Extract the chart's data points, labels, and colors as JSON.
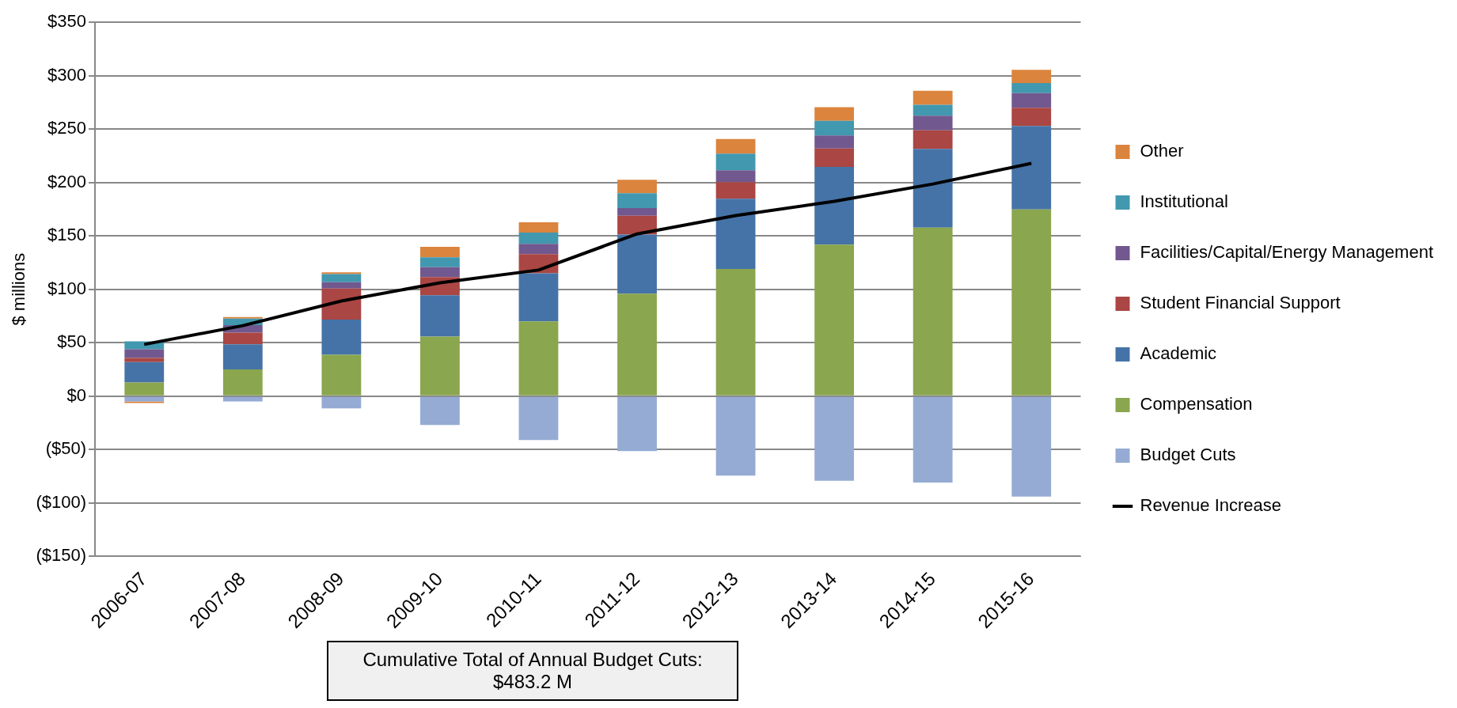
{
  "chart_data": {
    "type": "bar",
    "stacked": true,
    "ylabel": "$ millions",
    "categories": [
      "2006-07",
      "2007-08",
      "2008-09",
      "2009-10",
      "2010-11",
      "2011-12",
      "2012-13",
      "2013-14",
      "2014-15",
      "2015-16"
    ],
    "series": [
      {
        "name": "Budget Cuts",
        "color": "#95abd3",
        "values": [
          -5,
          -5,
          -11.4,
          -27,
          -41,
          -51.5,
          -74.4,
          -79.2,
          -80.9,
          -94.1
        ]
      },
      {
        "name": "Compensation",
        "color": "#8aa64e",
        "values": [
          12.8,
          25,
          38.7,
          55.7,
          69.9,
          95.8,
          119,
          141.8,
          157.7,
          174.7
        ]
      },
      {
        "name": "Academic",
        "color": "#4573a7",
        "values": [
          19,
          23.5,
          33,
          38.7,
          45,
          55.4,
          65.7,
          72.7,
          73.7,
          78.2
        ]
      },
      {
        "name": "Student Financial Support",
        "color": "#aa4643",
        "values": [
          4,
          11,
          29,
          17,
          18,
          17.6,
          15.6,
          17.3,
          17.3,
          16.9
        ]
      },
      {
        "name": "Facilities/Capital/Energy Management",
        "color": "#71588f",
        "values": [
          8,
          7,
          6,
          9.3,
          9.7,
          7.3,
          11,
          12.1,
          13.8,
          13.8
        ]
      },
      {
        "name": "Institutional",
        "color": "#4198af",
        "values": [
          7.5,
          6,
          7.5,
          9.3,
          10.4,
          13.8,
          15.6,
          13.8,
          10.1,
          9.4
        ]
      },
      {
        "name": "Other",
        "color": "#db843d",
        "values": [
          -1.5,
          1.5,
          1.7,
          9.7,
          9.7,
          12.5,
          13.8,
          12.8,
          13.1,
          12.4
        ]
      },
      {
        "name": "Revenue Increase",
        "type": "line",
        "color": "#000000",
        "values": [
          48.4,
          66,
          89,
          106,
          118,
          151.8,
          169,
          182.3,
          198.5,
          217.9
        ]
      }
    ],
    "ylim": [
      -150,
      350
    ],
    "yticks": [
      {
        "value": -150,
        "label": "($150)"
      },
      {
        "value": -100,
        "label": "($100)"
      },
      {
        "value": -50,
        "label": "($50)"
      },
      {
        "value": 0,
        "label": "$0"
      },
      {
        "value": 50,
        "label": "$50"
      },
      {
        "value": 100,
        "label": "$100"
      },
      {
        "value": 150,
        "label": "$150"
      },
      {
        "value": 200,
        "label": "$200"
      },
      {
        "value": 250,
        "label": "$250"
      },
      {
        "value": 300,
        "label": "$300"
      },
      {
        "value": 350,
        "label": "$350"
      }
    ],
    "grid": "y",
    "legend": "right",
    "marker": "none",
    "annotations": [
      "Cumulative Total of Annual Budget Cuts: $483.2 M"
    ]
  }
}
